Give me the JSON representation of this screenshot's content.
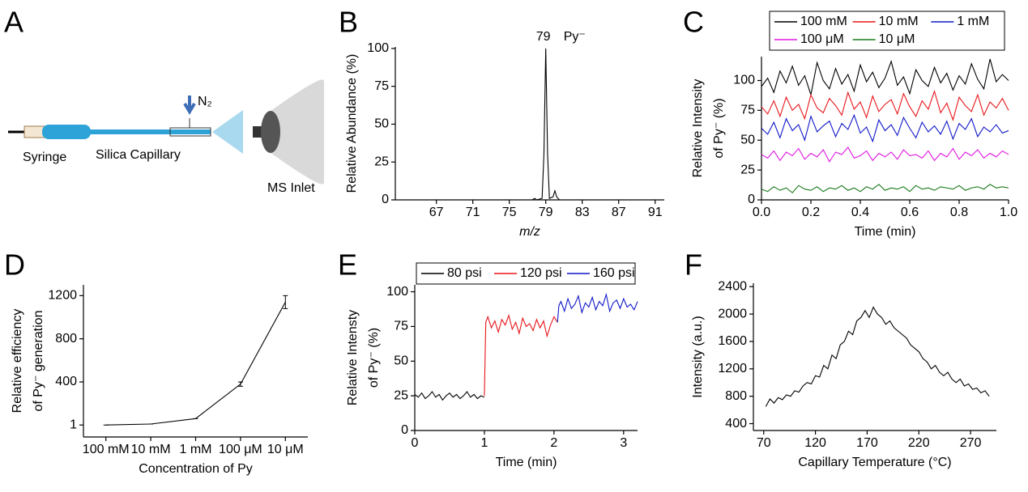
{
  "diagram": {
    "panel": "A",
    "syringe": "Syringe",
    "capillary": "Silica Capillary",
    "inlet": "MS Inlet",
    "gas": "N₂"
  },
  "chart_data": [
    {
      "type": "line",
      "panel": "B",
      "xlabel": "m/z",
      "ylabel": [
        "Relative Abundance (%)"
      ],
      "annotations": [
        "79",
        "Py⁻"
      ],
      "x": [
        64,
        70,
        75,
        77.5,
        77.8,
        78,
        78.6,
        78.8,
        79,
        79.2,
        79.4,
        79.8,
        80,
        80.2,
        80.5,
        81,
        85,
        91.5
      ],
      "values": [
        0,
        0,
        0,
        0,
        1,
        0,
        1,
        30,
        100,
        30,
        1,
        2,
        6,
        2,
        0,
        0,
        0,
        0
      ],
      "color": "#000000",
      "xlim": [
        62.5,
        92
      ],
      "xticks": [
        67,
        71,
        75,
        79,
        83,
        87,
        91
      ],
      "ylim": [
        0,
        101
      ],
      "yticks": [
        0,
        25,
        50,
        75,
        100
      ]
    },
    {
      "type": "line",
      "panel": "C",
      "xlabel": "Time (min)",
      "ylabel": [
        "Relative Intensity",
        "of Py⁻ (%)"
      ],
      "x": [
        0,
        0.025,
        0.05,
        0.075,
        0.1,
        0.125,
        0.15,
        0.175,
        0.2,
        0.225,
        0.25,
        0.275,
        0.3,
        0.325,
        0.35,
        0.375,
        0.4,
        0.425,
        0.45,
        0.475,
        0.5,
        0.525,
        0.55,
        0.575,
        0.6,
        0.625,
        0.65,
        0.675,
        0.7,
        0.725,
        0.75,
        0.775,
        0.8,
        0.825,
        0.85,
        0.875,
        0.9,
        0.925,
        0.95,
        0.975,
        1
      ],
      "series": [
        {
          "name": "100 mM",
          "color": "#000000",
          "values": [
            95,
            102,
            90,
            108,
            98,
            112,
            96,
            104,
            88,
            115,
            100,
            93,
            110,
            97,
            105,
            91,
            113,
            99,
            107,
            94,
            102,
            116,
            96,
            103,
            89,
            109,
            100,
            95,
            111,
            98,
            106,
            92,
            104,
            97,
            114,
            101,
            93,
            118,
            99,
            105,
            100
          ]
        },
        {
          "name": "10 mM",
          "color": "#e8161b",
          "values": [
            78,
            72,
            83,
            70,
            86,
            75,
            80,
            68,
            88,
            77,
            73,
            85,
            79,
            71,
            90,
            76,
            82,
            69,
            87,
            74,
            80,
            84,
            72,
            89,
            78,
            70,
            83,
            76,
            91,
            73,
            81,
            67,
            86,
            79,
            74,
            88,
            71,
            82,
            77,
            85,
            75
          ]
        },
        {
          "name": "1 mM",
          "color": "#1118c8",
          "values": [
            60,
            55,
            65,
            52,
            68,
            58,
            63,
            50,
            70,
            57,
            62,
            66,
            53,
            64,
            59,
            71,
            56,
            61,
            49,
            67,
            58,
            63,
            54,
            69,
            60,
            52,
            65,
            57,
            62,
            55,
            66,
            51,
            64,
            59,
            68,
            53,
            61,
            57,
            63,
            56,
            58
          ]
        },
        {
          "name": "100 μM",
          "color": "#e016e0",
          "values": [
            38,
            35,
            41,
            33,
            40,
            37,
            43,
            34,
            39,
            36,
            42,
            32,
            40,
            38,
            44,
            35,
            37,
            41,
            33,
            39,
            36,
            40,
            34,
            42,
            37,
            38,
            35,
            41,
            33,
            39,
            36,
            43,
            34,
            40,
            37,
            42,
            35,
            39,
            36,
            41,
            38
          ]
        },
        {
          "name": "10 μM",
          "color": "#1a7a1a",
          "values": [
            9,
            7,
            11,
            8,
            10,
            6,
            12,
            9,
            8,
            11,
            7,
            10,
            9,
            12,
            8,
            10,
            7,
            11,
            9,
            13,
            8,
            10,
            9,
            11,
            7,
            12,
            9,
            10,
            8,
            11,
            10,
            9,
            12,
            8,
            10,
            11,
            9,
            13,
            10,
            11,
            10
          ]
        }
      ],
      "xlim": [
        0,
        1
      ],
      "xticks": [
        {
          "value": 0,
          "label": "0.0"
        },
        {
          "value": 0.2,
          "label": "0.2"
        },
        {
          "value": 0.4,
          "label": "0.4"
        },
        {
          "value": 0.6,
          "label": "0.6"
        },
        {
          "value": 0.8,
          "label": "0.8"
        },
        {
          "value": 1,
          "label": "1.0"
        }
      ],
      "ylim": [
        0,
        120
      ],
      "yticks": [
        0,
        25,
        50,
        75,
        100
      ]
    },
    {
      "type": "line",
      "panel": "D",
      "xlabel": "Concentration of Py",
      "ylabel": [
        "Relative efficiency",
        "of Py⁻ generation"
      ],
      "categories": [
        "100 mM",
        "10 mM",
        "1 mM",
        "100 μM",
        "10 μM"
      ],
      "values": [
        1,
        10,
        60,
        380,
        1140
      ],
      "errors": [
        0,
        0,
        0,
        20,
        60
      ],
      "color": "#000000",
      "ylim": [
        -110,
        1300
      ],
      "yticks": [
        1,
        400,
        800,
        1200
      ]
    },
    {
      "type": "line",
      "panel": "E",
      "xlabel": "Time (min)",
      "ylabel": [
        "Relative Intensty",
        "of Py⁻ (%)"
      ],
      "series": [
        {
          "name": "80 psi",
          "color": "#000000",
          "x": [
            0,
            0.05,
            0.1,
            0.15,
            0.2,
            0.25,
            0.3,
            0.35,
            0.4,
            0.45,
            0.5,
            0.55,
            0.6,
            0.65,
            0.7,
            0.75,
            0.8,
            0.85,
            0.9,
            0.95,
            1
          ],
          "values": [
            26,
            24,
            27,
            23,
            25,
            28,
            24,
            26,
            22,
            25,
            27,
            24,
            26,
            23,
            25,
            28,
            24,
            26,
            23,
            25,
            24
          ]
        },
        {
          "name": "120 psi",
          "color": "#e8161b",
          "x": [
            1,
            1.02,
            1.05,
            1.1,
            1.15,
            1.2,
            1.25,
            1.3,
            1.35,
            1.4,
            1.45,
            1.5,
            1.55,
            1.6,
            1.65,
            1.7,
            1.75,
            1.8,
            1.85,
            1.9,
            1.95,
            2,
            2.05
          ],
          "values": [
            25,
            78,
            82,
            74,
            79,
            71,
            80,
            76,
            83,
            73,
            78,
            70,
            81,
            75,
            77,
            72,
            80,
            74,
            79,
            68,
            76,
            82,
            78
          ]
        },
        {
          "name": "160 psi",
          "color": "#1118c8",
          "x": [
            2.05,
            2.07,
            2.1,
            2.15,
            2.2,
            2.25,
            2.3,
            2.35,
            2.4,
            2.45,
            2.5,
            2.55,
            2.6,
            2.65,
            2.7,
            2.75,
            2.8,
            2.85,
            2.9,
            2.95,
            3,
            3.05,
            3.1,
            3.15,
            3.2
          ],
          "values": [
            78,
            90,
            93,
            86,
            95,
            88,
            91,
            97,
            85,
            92,
            89,
            96,
            87,
            93,
            90,
            98,
            86,
            92,
            94,
            88,
            95,
            89,
            91,
            87,
            93
          ]
        }
      ],
      "xlim": [
        0,
        3.2
      ],
      "xticks": [
        0,
        1,
        2,
        3
      ],
      "ylim": [
        0,
        105
      ],
      "yticks": [
        0,
        25,
        50,
        75,
        100
      ]
    },
    {
      "type": "line",
      "panel": "F",
      "xlabel": "Capillary Temperature (°C)",
      "ylabel": [
        "Intensity (a.u.)"
      ],
      "color": "#000000",
      "x": [
        72,
        76,
        80,
        84,
        88,
        92,
        96,
        100,
        104,
        108,
        112,
        116,
        120,
        124,
        128,
        132,
        136,
        140,
        144,
        148,
        152,
        156,
        160,
        164,
        168,
        172,
        176,
        180,
        184,
        188,
        192,
        196,
        200,
        204,
        208,
        212,
        216,
        220,
        224,
        228,
        232,
        236,
        240,
        244,
        248,
        252,
        256,
        260,
        264,
        268,
        272,
        276,
        280,
        284,
        288
      ],
      "values": [
        650,
        760,
        700,
        780,
        750,
        820,
        800,
        880,
        860,
        950,
        1000,
        980,
        1100,
        1080,
        1250,
        1200,
        1400,
        1350,
        1550,
        1600,
        1750,
        1700,
        1900,
        1950,
        2050,
        1950,
        2100,
        2000,
        1950,
        1850,
        1900,
        1800,
        1750,
        1700,
        1650,
        1550,
        1500,
        1450,
        1350,
        1300,
        1200,
        1250,
        1150,
        1100,
        1150,
        1050,
        1000,
        1050,
        950,
        980,
        900,
        920,
        850,
        880,
        800
      ],
      "xlim": [
        60,
        295
      ],
      "xticks": [
        70,
        120,
        170,
        220,
        270
      ],
      "ylim": [
        300,
        2450
      ],
      "yticks": [
        400,
        800,
        1200,
        1600,
        2000,
        2400
      ]
    }
  ]
}
